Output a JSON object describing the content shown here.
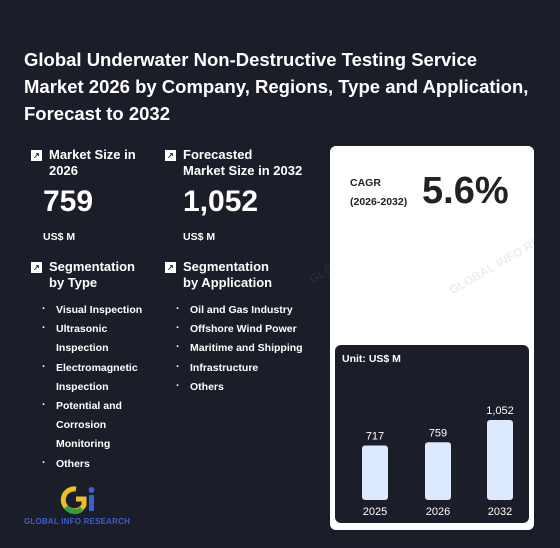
{
  "title": "Global Underwater Non-Destructive Testing Service Market 2026 by Company, Regions, Type and Application, Forecast to 2032",
  "market_size": {
    "label": "Market Size in\n2026",
    "value": "759",
    "unit": "US$ M"
  },
  "forecast_size": {
    "label": "Forecasted\nMarket Size in 2032",
    "value": "1,052",
    "unit": "US$ M"
  },
  "segmentation_type": {
    "label": "Segmentation\nby Type",
    "items": [
      "Visual Inspection",
      "Ultrasonic Inspection",
      "Electromagnetic Inspection",
      "Potential and Corrosion Monitoring",
      "Others"
    ]
  },
  "segmentation_application": {
    "label": "Segmentation\nby Application",
    "items": [
      "Oil and Gas Industry",
      "Offshore Wind Power",
      "Maritime and Shipping",
      "Infrastructure",
      "Others"
    ]
  },
  "cagr": {
    "label": "CAGR\n(2026-2032)",
    "value": "5.6%"
  },
  "logo_text": "GLOBAL INFO RESEARCH",
  "icons": {
    "metric": "arrow-up-right-icon"
  },
  "colors": {
    "background": "#1b1d29",
    "bar": "#dce9ff",
    "card": "#ffffff"
  },
  "chart_data": {
    "type": "bar",
    "unit_label": "Unit: US$ M",
    "categories": [
      "2025",
      "2026",
      "2032"
    ],
    "values": [
      717,
      759,
      1052
    ],
    "value_labels": [
      "717",
      "759",
      "1,052"
    ]
  }
}
